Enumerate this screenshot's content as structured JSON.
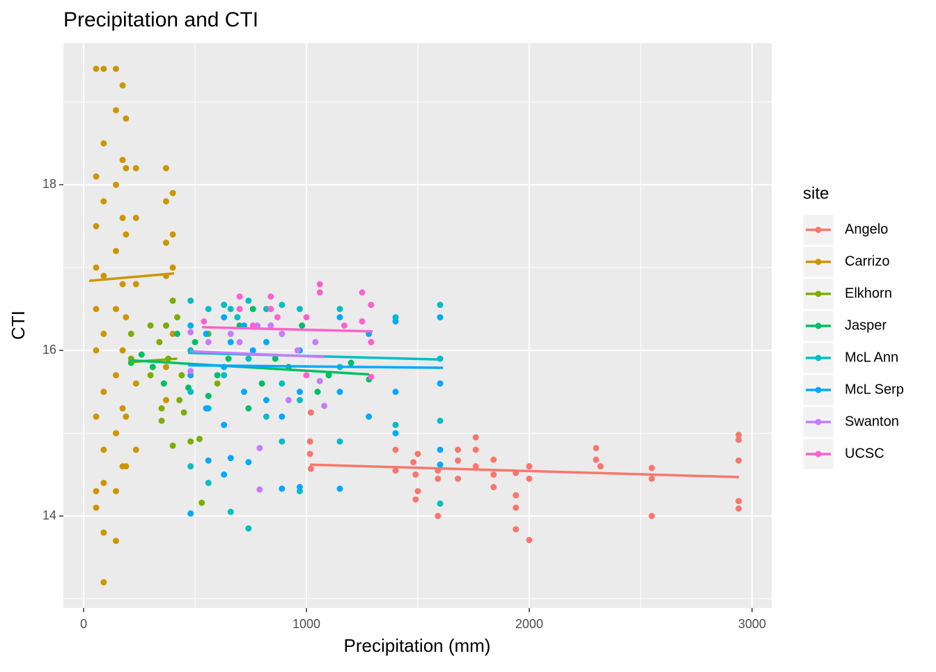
{
  "chart_data": {
    "type": "scatter",
    "title": "Precipitation and CTI",
    "x_label": "Precipitation (mm)",
    "y_label": "CTI",
    "legend_title": "site",
    "legend_position": "right",
    "grid": true,
    "xlim": [
      -91,
      3088
    ],
    "ylim": [
      12.89,
      19.71
    ],
    "xticks": [
      0,
      1000,
      2000,
      3000
    ],
    "yticks": [
      14,
      16,
      18
    ],
    "minor_xticks": [
      500,
      1500,
      2500
    ],
    "minor_yticks": [
      13,
      15,
      17,
      19
    ],
    "series": [
      {
        "name": "Angelo",
        "color": "#F8766D",
        "x": [
          1016,
          1016,
          1020,
          1020,
          1400,
          1400,
          1480,
          1490,
          1500,
          1500,
          1490,
          1590,
          1590,
          1590,
          1680,
          1680,
          1680,
          1760,
          1760,
          1760,
          1840,
          1840,
          1840,
          1940,
          1940,
          1940,
          1940,
          2000,
          2000,
          2000,
          2300,
          2300,
          2320,
          2550,
          2550,
          2550,
          2940,
          2940,
          2940,
          2940,
          2940
        ],
        "values": [
          14.9,
          14.75,
          14.57,
          15.25,
          14.8,
          14.55,
          14.65,
          14.5,
          14.75,
          14.3,
          14.2,
          14.55,
          14.0,
          14.45,
          14.8,
          14.67,
          14.45,
          14.95,
          14.8,
          14.6,
          14.68,
          14.5,
          14.35,
          14.52,
          14.25,
          14.1,
          13.84,
          14.6,
          14.45,
          13.71,
          14.82,
          14.68,
          14.6,
          14.58,
          14.45,
          14.0,
          14.98,
          14.92,
          14.67,
          14.18,
          14.09
        ],
        "fit": {
          "x": [
            1016,
            2941
          ],
          "values": [
            14.62,
            14.47
          ]
        }
      },
      {
        "name": "Carrizo",
        "color": "#CD9600",
        "x": [
          56,
          56,
          56,
          56,
          56,
          56,
          56,
          56,
          56,
          90,
          90,
          90,
          90,
          90,
          90,
          90,
          90,
          90,
          90,
          145,
          145,
          145,
          145,
          145,
          145,
          145,
          145,
          145,
          175,
          175,
          175,
          175,
          175,
          175,
          175,
          190,
          190,
          190,
          190,
          190,
          190,
          235,
          235,
          235,
          235,
          235,
          370,
          370,
          370,
          370,
          370,
          370,
          370,
          400,
          400,
          400,
          400,
          400
        ],
        "values": [
          19.4,
          18.1,
          17.5,
          17.0,
          16.5,
          16.0,
          15.2,
          14.3,
          14.1,
          19.4,
          18.5,
          17.8,
          16.9,
          16.2,
          15.5,
          14.8,
          14.4,
          13.8,
          13.2,
          19.4,
          18.9,
          18.0,
          17.2,
          16.5,
          15.7,
          15.0,
          14.3,
          13.7,
          19.2,
          18.3,
          17.6,
          16.8,
          16.0,
          15.3,
          14.6,
          18.8,
          18.2,
          17.4,
          16.4,
          15.2,
          14.6,
          18.2,
          17.6,
          16.8,
          15.6,
          14.8,
          18.2,
          17.8,
          17.3,
          16.9,
          16.3,
          15.8,
          15.4,
          17.9,
          17.4,
          17.0,
          16.6,
          16.2
        ],
        "fit": {
          "x": [
            25,
            406
          ],
          "values": [
            16.84,
            16.93
          ]
        }
      },
      {
        "name": "Elkhorn",
        "color": "#7CAE00",
        "x": [
          213,
          213,
          300,
          300,
          340,
          350,
          350,
          370,
          380,
          400,
          400,
          420,
          430,
          440,
          450,
          480,
          520,
          530,
          600,
          560
        ],
        "values": [
          16.2,
          15.9,
          16.3,
          15.7,
          16.1,
          15.3,
          15.15,
          16.3,
          15.9,
          16.6,
          14.85,
          16.4,
          15.4,
          15.7,
          15.25,
          14.9,
          14.93,
          14.16,
          15.6,
          16.2
        ],
        "fit": {
          "x": [
            213,
            420
          ],
          "values": [
            15.86,
            15.9
          ]
        }
      },
      {
        "name": "Jasper",
        "color": "#00BE67",
        "x": [
          213,
          260,
          310,
          360,
          420,
          470,
          500,
          560,
          600,
          650,
          700,
          740,
          760,
          800,
          860,
          920,
          980,
          1050,
          1100,
          1200,
          1281
        ],
        "values": [
          15.85,
          15.95,
          15.8,
          15.6,
          16.2,
          15.55,
          16.1,
          15.45,
          15.7,
          15.9,
          16.3,
          15.3,
          16.5,
          15.6,
          15.9,
          15.8,
          16.3,
          15.5,
          15.7,
          15.85,
          15.65
        ],
        "fit": {
          "x": [
            213,
            1281
          ],
          "values": [
            15.88,
            15.71
          ]
        }
      },
      {
        "name": "McL Ann",
        "color": "#00BFC4",
        "x": [
          480,
          480,
          480,
          480,
          560,
          560,
          560,
          630,
          630,
          660,
          660,
          690,
          740,
          740,
          740,
          820,
          820,
          890,
          890,
          890,
          970,
          970,
          970,
          1150,
          1150,
          1150,
          1400,
          1400,
          1600,
          1600,
          1600,
          1600
        ],
        "values": [
          16.6,
          16.0,
          15.5,
          14.6,
          16.5,
          15.3,
          14.4,
          16.55,
          15.7,
          16.5,
          14.05,
          16.4,
          16.6,
          15.9,
          13.85,
          16.5,
          15.2,
          16.55,
          15.6,
          14.9,
          16.5,
          15.4,
          14.3,
          16.5,
          15.8,
          14.9,
          16.4,
          15.1,
          16.55,
          15.9,
          15.15,
          14.15
        ],
        "fit": {
          "x": [
            469,
            1600
          ],
          "values": [
            15.97,
            15.89
          ]
        }
      },
      {
        "name": "McL Serp",
        "color": "#00A9FF",
        "x": [
          480,
          480,
          480,
          550,
          550,
          560,
          630,
          630,
          630,
          630,
          660,
          660,
          720,
          720,
          740,
          760,
          820,
          820,
          890,
          890,
          890,
          970,
          970,
          970,
          1150,
          1150,
          1150,
          1280,
          1280,
          1400,
          1400,
          1400,
          1600,
          1600,
          1600,
          1600
        ],
        "values": [
          16.3,
          15.7,
          14.03,
          16.2,
          15.3,
          14.67,
          16.4,
          15.8,
          15.1,
          14.5,
          16.1,
          14.7,
          16.3,
          15.5,
          14.65,
          16.0,
          16.1,
          15.4,
          16.2,
          15.2,
          14.33,
          16.0,
          15.5,
          14.35,
          16.4,
          15.5,
          14.33,
          16.2,
          15.2,
          16.35,
          15.5,
          15.0,
          16.4,
          15.6,
          14.8,
          14.62
        ],
        "fit": {
          "x": [
            469,
            1613
          ],
          "values": [
            15.82,
            15.79
          ]
        }
      },
      {
        "name": "Swanton",
        "color": "#C77CFF",
        "x": [
          480,
          480,
          560,
          660,
          700,
          780,
          790,
          790,
          840,
          890,
          920,
          960,
          1040,
          1060,
          1080
        ],
        "values": [
          16.22,
          15.75,
          16.1,
          16.2,
          16.1,
          16.3,
          14.82,
          14.32,
          16.3,
          16.2,
          15.4,
          16.0,
          16.1,
          15.63,
          15.33
        ],
        "fit": {
          "x": [
            478,
            1078
          ],
          "values": [
            15.99,
            15.92
          ]
        }
      },
      {
        "name": "UCSC",
        "color": "#FF61CC",
        "x": [
          540,
          700,
          700,
          760,
          840,
          840,
          870,
          1000,
          1000,
          1060,
          1060,
          1170,
          1250,
          1250,
          1290,
          1290,
          1290
        ],
        "values": [
          16.35,
          16.65,
          16.5,
          16.3,
          16.65,
          16.5,
          16.4,
          16.4,
          15.7,
          16.8,
          16.7,
          16.3,
          16.7,
          16.35,
          16.55,
          16.1,
          15.68
        ],
        "fit": {
          "x": [
            531,
            1297
          ],
          "values": [
            16.28,
            16.23
          ]
        }
      }
    ]
  }
}
